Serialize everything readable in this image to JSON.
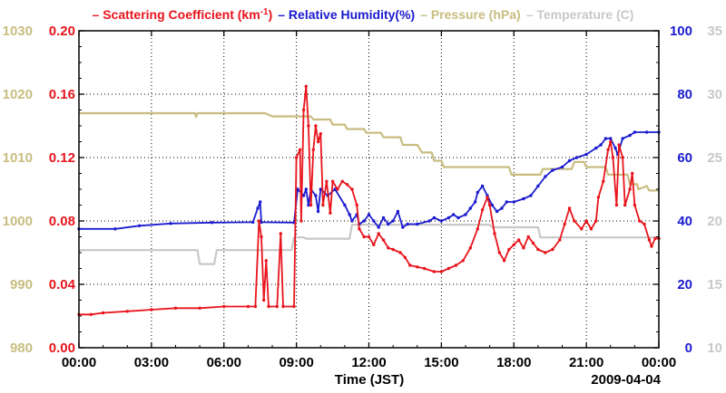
{
  "chart_data": {
    "type": "line",
    "legend": [
      {
        "prefix": "– ",
        "label": "Scattering Coefficient (km",
        "superscript": "-1",
        "suffix": ")",
        "color": "#e8141c"
      },
      {
        "prefix": "– ",
        "label": "Relative Humidity(%)",
        "color": "#1b1bd0"
      },
      {
        "prefix": "– ",
        "label": "Pressure (hPa)",
        "color": "#c8bd80"
      },
      {
        "prefix": "– ",
        "label": "Temperature (C)",
        "color": "#c8c8c8"
      }
    ],
    "xlabel": "Time (JST)",
    "date_label": "2009-04-04",
    "x_range": [
      0,
      24
    ],
    "x_ticks": [
      {
        "v": 0,
        "label": "00:00"
      },
      {
        "v": 3,
        "label": "03:00"
      },
      {
        "v": 6,
        "label": "06:00"
      },
      {
        "v": 9,
        "label": "09:00"
      },
      {
        "v": 12,
        "label": "12:00"
      },
      {
        "v": 15,
        "label": "15:00"
      },
      {
        "v": 18,
        "label": "18:00"
      },
      {
        "v": 21,
        "label": "21:00"
      },
      {
        "v": 24,
        "label": "00:00"
      }
    ],
    "axes": {
      "pressure": {
        "range": [
          980,
          1030
        ],
        "ticks": [
          "980",
          "990",
          "1000",
          "1010",
          "1020",
          "1030"
        ],
        "color": "#c8bd80"
      },
      "scattering": {
        "range": [
          0,
          0.2
        ],
        "ticks": [
          "0.00",
          "0.04",
          "0.08",
          "0.12",
          "0.16",
          "0.20"
        ],
        "color": "#e8141c"
      },
      "humidity": {
        "range": [
          0,
          100
        ],
        "ticks": [
          "0",
          "20",
          "40",
          "60",
          "80",
          "100"
        ],
        "color": "#1b1bd0"
      },
      "temperature": {
        "range": [
          10,
          35
        ],
        "ticks": [
          "10",
          "15",
          "20",
          "25",
          "30",
          "35"
        ],
        "color": "#c8c8c8"
      }
    },
    "series": [
      {
        "name": "Scattering Coefficient",
        "axis": "scattering",
        "color": "#e8141c",
        "markers": true,
        "points": [
          [
            0,
            0.021
          ],
          [
            0.5,
            0.021
          ],
          [
            1,
            0.022
          ],
          [
            2,
            0.023
          ],
          [
            3,
            0.024
          ],
          [
            4,
            0.025
          ],
          [
            5,
            0.025
          ],
          [
            6,
            0.026
          ],
          [
            7,
            0.026
          ],
          [
            7.3,
            0.026
          ],
          [
            7.45,
            0.08
          ],
          [
            7.55,
            0.07
          ],
          [
            7.65,
            0.03
          ],
          [
            7.75,
            0.055
          ],
          [
            7.85,
            0.026
          ],
          [
            8.2,
            0.026
          ],
          [
            8.35,
            0.072
          ],
          [
            8.45,
            0.026
          ],
          [
            8.9,
            0.026
          ],
          [
            9.0,
            0.12
          ],
          [
            9.15,
            0.125
          ],
          [
            9.2,
            0.08
          ],
          [
            9.3,
            0.15
          ],
          [
            9.4,
            0.165
          ],
          [
            9.5,
            0.14
          ],
          [
            9.6,
            0.09
          ],
          [
            9.7,
            0.125
          ],
          [
            9.8,
            0.14
          ],
          [
            9.9,
            0.13
          ],
          [
            10.0,
            0.135
          ],
          [
            10.1,
            0.09
          ],
          [
            10.25,
            0.105
          ],
          [
            10.4,
            0.085
          ],
          [
            10.5,
            0.105
          ],
          [
            10.7,
            0.1
          ],
          [
            10.9,
            0.105
          ],
          [
            11.1,
            0.103
          ],
          [
            11.3,
            0.1
          ],
          [
            11.5,
            0.09
          ],
          [
            11.6,
            0.075
          ],
          [
            11.8,
            0.07
          ],
          [
            12.0,
            0.07
          ],
          [
            12.2,
            0.065
          ],
          [
            12.4,
            0.072
          ],
          [
            12.6,
            0.068
          ],
          [
            12.8,
            0.063
          ],
          [
            13.0,
            0.062
          ],
          [
            13.3,
            0.06
          ],
          [
            13.5,
            0.057
          ],
          [
            13.7,
            0.052
          ],
          [
            14.0,
            0.051
          ],
          [
            14.3,
            0.05
          ],
          [
            14.7,
            0.048
          ],
          [
            15.0,
            0.048
          ],
          [
            15.3,
            0.05
          ],
          [
            15.6,
            0.052
          ],
          [
            15.9,
            0.055
          ],
          [
            16.2,
            0.063
          ],
          [
            16.5,
            0.075
          ],
          [
            16.7,
            0.087
          ],
          [
            16.9,
            0.095
          ],
          [
            17.0,
            0.09
          ],
          [
            17.2,
            0.072
          ],
          [
            17.4,
            0.06
          ],
          [
            17.6,
            0.055
          ],
          [
            17.8,
            0.062
          ],
          [
            18.0,
            0.065
          ],
          [
            18.2,
            0.068
          ],
          [
            18.4,
            0.063
          ],
          [
            18.6,
            0.07
          ],
          [
            18.8,
            0.066
          ],
          [
            19.0,
            0.062
          ],
          [
            19.3,
            0.06
          ],
          [
            19.6,
            0.062
          ],
          [
            19.9,
            0.068
          ],
          [
            20.1,
            0.078
          ],
          [
            20.3,
            0.088
          ],
          [
            20.5,
            0.08
          ],
          [
            20.8,
            0.075
          ],
          [
            21.0,
            0.08
          ],
          [
            21.2,
            0.075
          ],
          [
            21.4,
            0.08
          ],
          [
            21.5,
            0.095
          ],
          [
            21.7,
            0.105
          ],
          [
            21.9,
            0.125
          ],
          [
            22.0,
            0.13
          ],
          [
            22.1,
            0.12
          ],
          [
            22.25,
            0.09
          ],
          [
            22.35,
            0.128
          ],
          [
            22.5,
            0.12
          ],
          [
            22.6,
            0.09
          ],
          [
            22.8,
            0.1
          ],
          [
            22.9,
            0.11
          ],
          [
            23.0,
            0.09
          ],
          [
            23.2,
            0.08
          ],
          [
            23.4,
            0.078
          ],
          [
            23.6,
            0.068
          ],
          [
            23.7,
            0.064
          ],
          [
            23.85,
            0.069
          ],
          [
            24.0,
            0.069
          ]
        ]
      },
      {
        "name": "Relative Humidity",
        "axis": "humidity",
        "color": "#1b1bd0",
        "markers": true,
        "points": [
          [
            0,
            37.5
          ],
          [
            1.5,
            37.5
          ],
          [
            2.5,
            38.5
          ],
          [
            3.8,
            39.2
          ],
          [
            5.5,
            39.5
          ],
          [
            7.2,
            39.6
          ],
          [
            7.4,
            44
          ],
          [
            7.5,
            46
          ],
          [
            7.55,
            39.6
          ],
          [
            8.9,
            39.5
          ],
          [
            9.05,
            50
          ],
          [
            9.3,
            48
          ],
          [
            9.4,
            50
          ],
          [
            9.5,
            45
          ],
          [
            9.6,
            50
          ],
          [
            9.8,
            48
          ],
          [
            9.9,
            43
          ],
          [
            10.0,
            50
          ],
          [
            10.3,
            48
          ],
          [
            10.6,
            50
          ],
          [
            11.0,
            45
          ],
          [
            11.2,
            42
          ],
          [
            11.3,
            40
          ],
          [
            11.5,
            42
          ],
          [
            11.6,
            39
          ],
          [
            11.8,
            40
          ],
          [
            12.0,
            42
          ],
          [
            12.2,
            40
          ],
          [
            12.4,
            38
          ],
          [
            12.6,
            41
          ],
          [
            12.8,
            39
          ],
          [
            13.0,
            40
          ],
          [
            13.2,
            43
          ],
          [
            13.4,
            38
          ],
          [
            13.6,
            39
          ],
          [
            14.0,
            39
          ],
          [
            14.5,
            40
          ],
          [
            14.7,
            41
          ],
          [
            15.0,
            40
          ],
          [
            15.3,
            41
          ],
          [
            15.5,
            42
          ],
          [
            15.7,
            41
          ],
          [
            16.0,
            42
          ],
          [
            16.2,
            44
          ],
          [
            16.4,
            46
          ],
          [
            16.5,
            49
          ],
          [
            16.7,
            51
          ],
          [
            16.9,
            48
          ],
          [
            17.1,
            45
          ],
          [
            17.3,
            43
          ],
          [
            17.5,
            44
          ],
          [
            17.7,
            46
          ],
          [
            18.0,
            46
          ],
          [
            18.4,
            47
          ],
          [
            18.7,
            48
          ],
          [
            19.0,
            51
          ],
          [
            19.3,
            54
          ],
          [
            19.6,
            56
          ],
          [
            20.0,
            57
          ],
          [
            20.3,
            59
          ],
          [
            20.6,
            60
          ],
          [
            21.0,
            61
          ],
          [
            21.4,
            63
          ],
          [
            21.6,
            64
          ],
          [
            21.8,
            66
          ],
          [
            22.0,
            66
          ],
          [
            22.2,
            63
          ],
          [
            22.3,
            61
          ],
          [
            22.5,
            66
          ],
          [
            22.8,
            67
          ],
          [
            23.0,
            68
          ],
          [
            23.5,
            68
          ],
          [
            24.0,
            68
          ]
        ]
      },
      {
        "name": "Pressure",
        "axis": "pressure",
        "color": "#c8bd80",
        "markers": false,
        "points": [
          [
            0,
            1017
          ],
          [
            4.8,
            1017
          ],
          [
            4.85,
            1016.4
          ],
          [
            4.9,
            1017
          ],
          [
            7.7,
            1017
          ],
          [
            8.0,
            1016.5
          ],
          [
            9.6,
            1016.5
          ],
          [
            9.7,
            1016
          ],
          [
            10.4,
            1016
          ],
          [
            10.5,
            1015.2
          ],
          [
            11.0,
            1015.2
          ],
          [
            11.1,
            1014.5
          ],
          [
            11.8,
            1014.5
          ],
          [
            11.9,
            1013.9
          ],
          [
            12.5,
            1013.9
          ],
          [
            12.6,
            1013.2
          ],
          [
            13.3,
            1013.2
          ],
          [
            13.4,
            1012
          ],
          [
            14.0,
            1012
          ],
          [
            14.2,
            1010.8
          ],
          [
            14.6,
            1010.8
          ],
          [
            14.7,
            1009.5
          ],
          [
            15.0,
            1009.5
          ],
          [
            15.1,
            1008.5
          ],
          [
            17.8,
            1008.5
          ],
          [
            17.9,
            1007.3
          ],
          [
            19.1,
            1007.3
          ],
          [
            19.2,
            1008.2
          ],
          [
            20.4,
            1008.2
          ],
          [
            20.5,
            1009.3
          ],
          [
            20.9,
            1009.3
          ],
          [
            21.0,
            1008.5
          ],
          [
            21.8,
            1008.5
          ],
          [
            21.9,
            1007.3
          ],
          [
            22.7,
            1007.3
          ],
          [
            22.8,
            1005.8
          ],
          [
            23.1,
            1005.8
          ],
          [
            23.15,
            1005
          ],
          [
            23.5,
            1005.5
          ],
          [
            23.6,
            1004.8
          ],
          [
            24.0,
            1004.8
          ]
        ]
      },
      {
        "name": "Temperature",
        "axis": "temperature",
        "color": "#c8c8c8",
        "markers": false,
        "points": [
          [
            0,
            17.7
          ],
          [
            4.9,
            17.7
          ],
          [
            5.0,
            16.6
          ],
          [
            5.6,
            16.6
          ],
          [
            5.7,
            17.7
          ],
          [
            8.8,
            17.7
          ],
          [
            8.9,
            18.7
          ],
          [
            9.3,
            18.7
          ],
          [
            9.4,
            18.6
          ],
          [
            11.2,
            18.6
          ],
          [
            11.3,
            19.7
          ],
          [
            17.0,
            19.7
          ],
          [
            17.1,
            19.5
          ],
          [
            19.0,
            19.5
          ],
          [
            19.1,
            18.7
          ],
          [
            24.0,
            18.7
          ]
        ]
      }
    ]
  }
}
